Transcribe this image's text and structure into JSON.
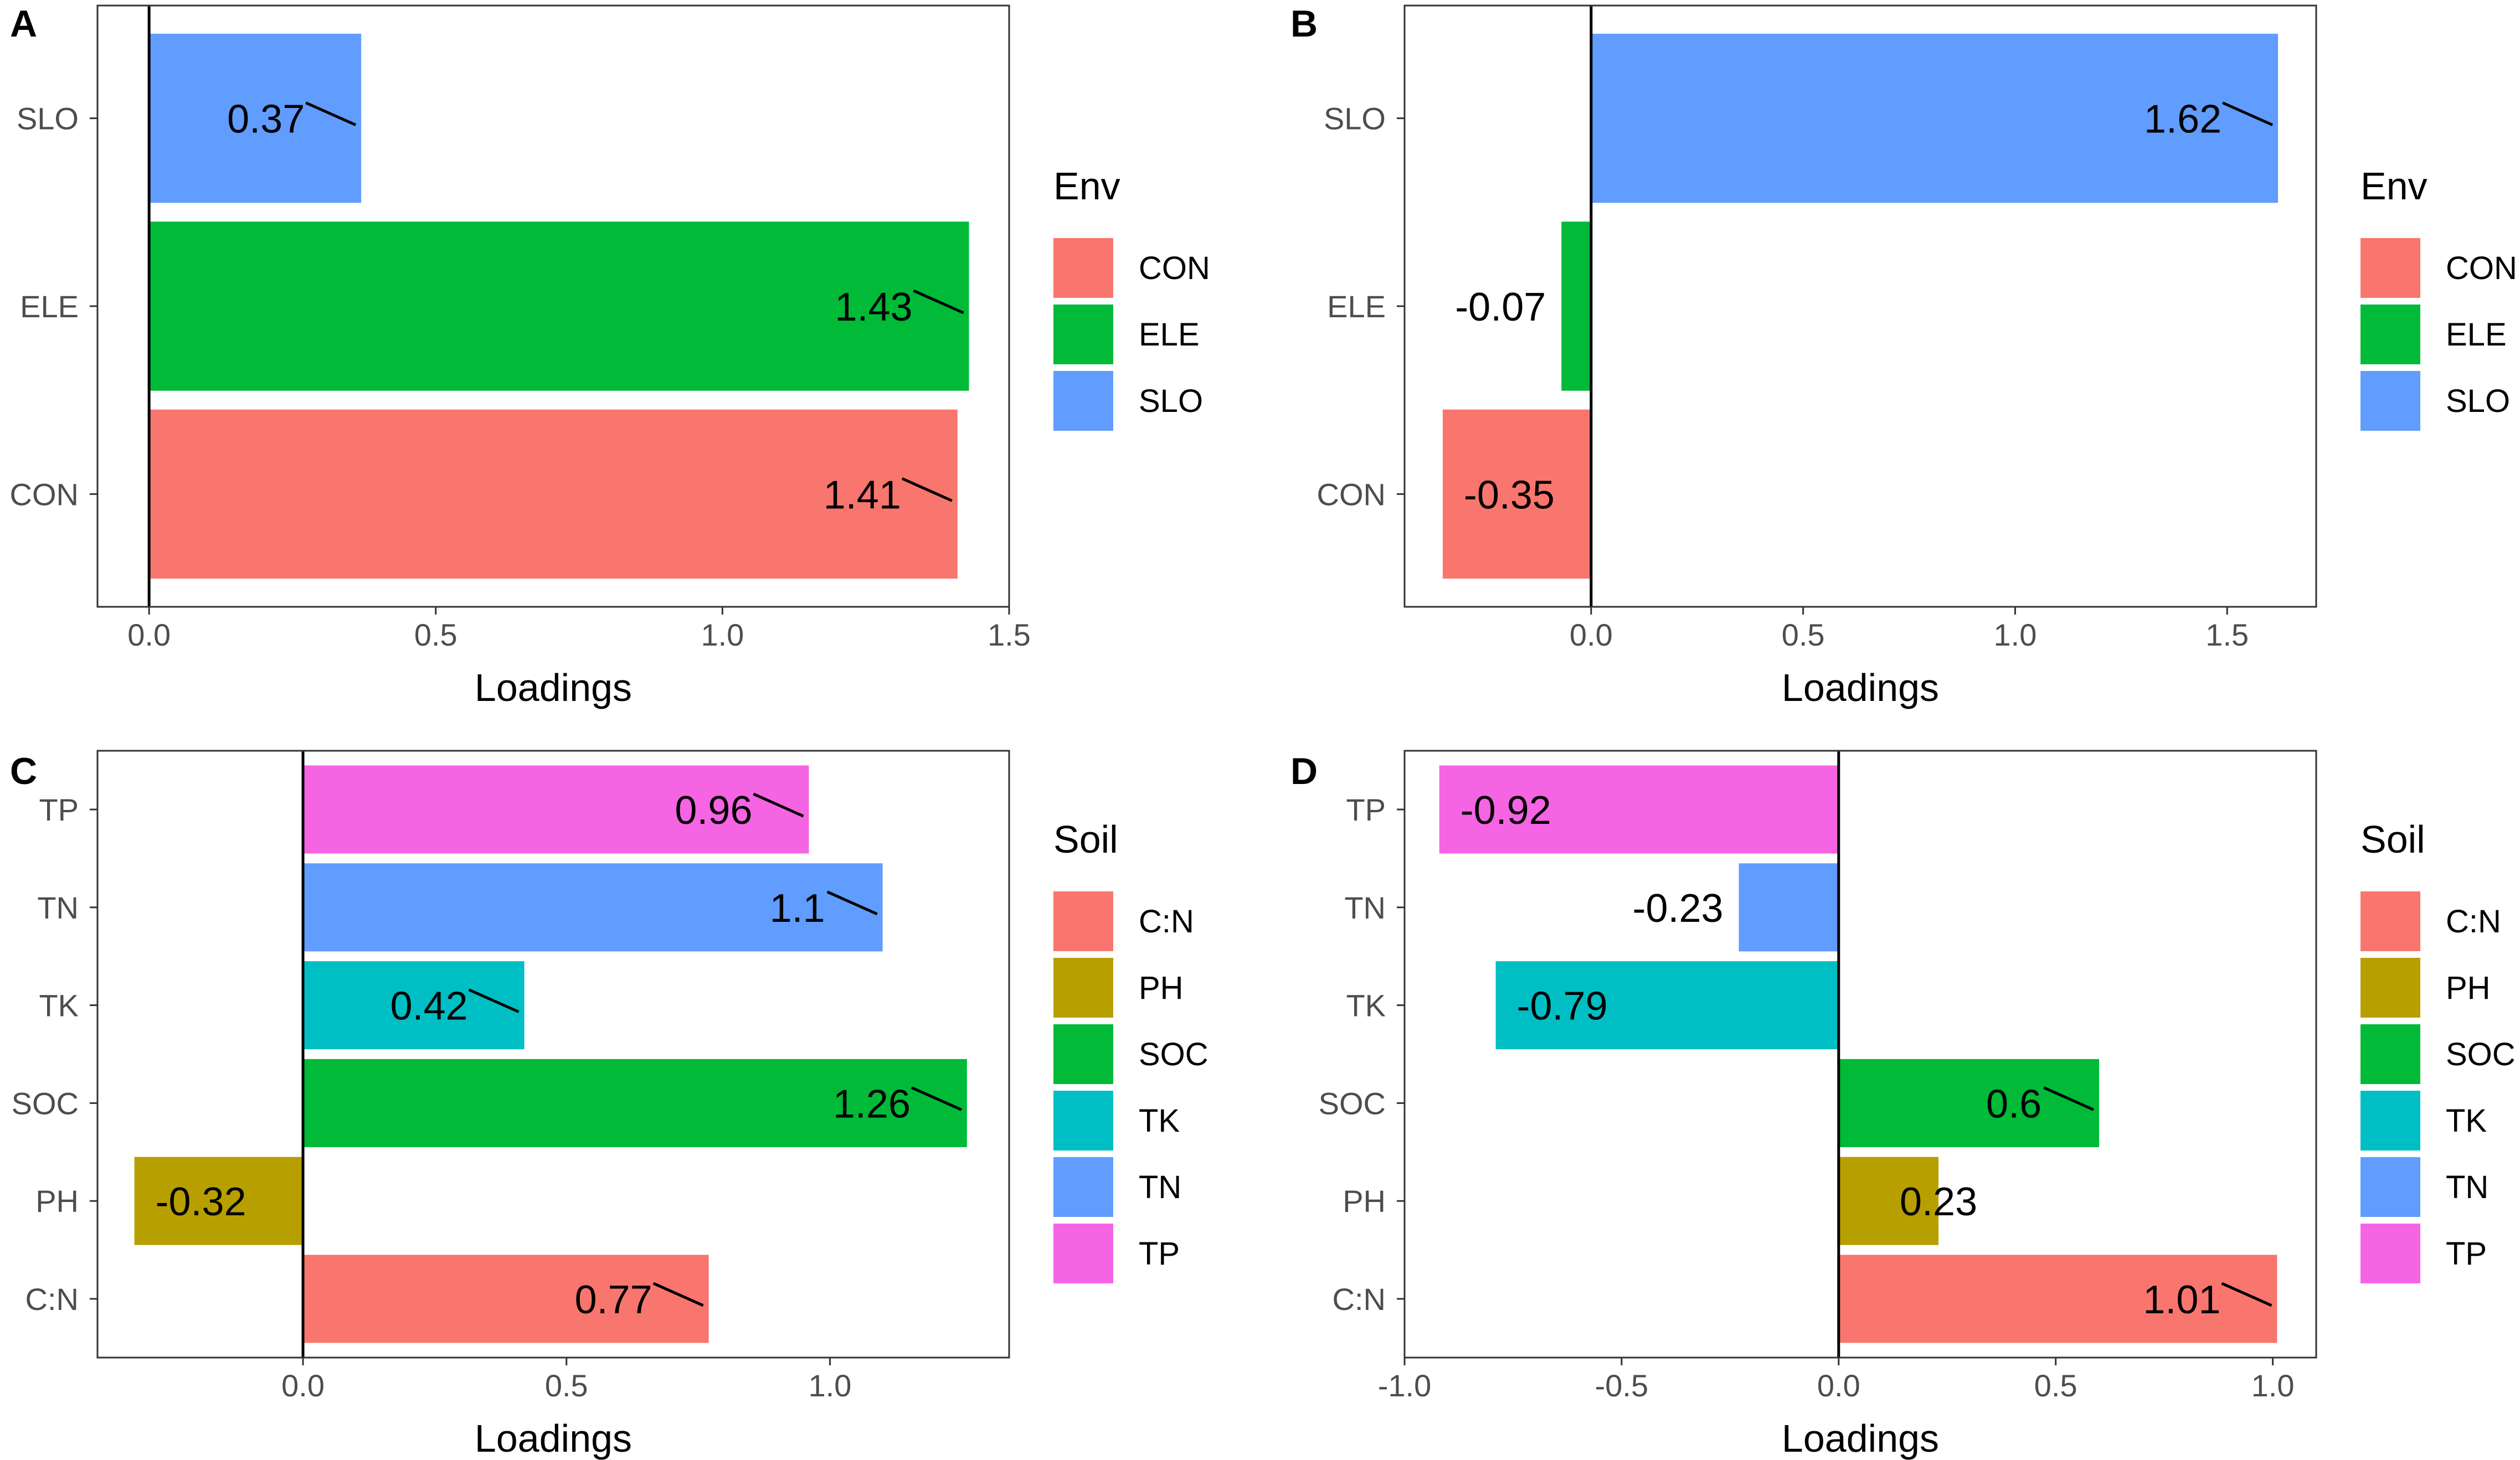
{
  "figure": {
    "x_axis_label": "Loadings"
  },
  "chart_data": [
    {
      "panel": "A",
      "type": "bar",
      "orientation": "horizontal",
      "categories": [
        "CON",
        "ELE",
        "SLO"
      ],
      "values": [
        1.41,
        1.43,
        0.37
      ],
      "labels": [
        "1.41",
        "1.43",
        "0.37"
      ],
      "colors": [
        "#F8766D",
        "#00BA38",
        "#619CFF"
      ],
      "xlabel": "Loadings",
      "xlim": [
        -0.09,
        1.5
      ],
      "xticks": [
        0.0,
        0.5,
        1.0,
        1.5
      ],
      "xtick_labels": [
        "0.0",
        "0.5",
        "1.0",
        "1.5"
      ],
      "legend": {
        "title": "Env",
        "entries": [
          "CON",
          "ELE",
          "SLO"
        ],
        "colors": [
          "#F8766D",
          "#00BA38",
          "#619CFF"
        ],
        "position": "right"
      }
    },
    {
      "panel": "B",
      "type": "bar",
      "orientation": "horizontal",
      "categories": [
        "CON",
        "ELE",
        "SLO"
      ],
      "values": [
        -0.35,
        -0.07,
        1.62
      ],
      "labels": [
        "-0.35",
        "-0.07",
        "1.62"
      ],
      "colors": [
        "#F8766D",
        "#00BA38",
        "#619CFF"
      ],
      "xlabel": "Loadings",
      "xlim": [
        -0.44,
        1.71
      ],
      "xticks": [
        0.0,
        0.5,
        1.0,
        1.5
      ],
      "xtick_labels": [
        "0.0",
        "0.5",
        "1.0",
        "1.5"
      ],
      "legend": {
        "title": "Env",
        "entries": [
          "CON",
          "ELE",
          "SLO"
        ],
        "colors": [
          "#F8766D",
          "#00BA38",
          "#619CFF"
        ],
        "position": "right"
      }
    },
    {
      "panel": "C",
      "type": "bar",
      "orientation": "horizontal",
      "categories": [
        "C:N",
        "PH",
        "SOC",
        "TK",
        "TN",
        "TP"
      ],
      "values": [
        0.77,
        -0.32,
        1.26,
        0.42,
        1.1,
        0.96
      ],
      "labels": [
        "0.77",
        "-0.32",
        "1.26",
        "0.42",
        "1.1",
        "0.96"
      ],
      "colors": [
        "#F8766D",
        "#B79F00",
        "#00BA38",
        "#00BFC4",
        "#619CFF",
        "#F564E3"
      ],
      "xlabel": "Loadings",
      "xlim": [
        -0.39,
        1.34
      ],
      "xticks": [
        0.0,
        0.5,
        1.0
      ],
      "xtick_labels": [
        "0.0",
        "0.5",
        "1.0"
      ],
      "legend": {
        "title": "Soil",
        "entries": [
          "C:N",
          "PH",
          "SOC",
          "TK",
          "TN",
          "TP"
        ],
        "colors": [
          "#F8766D",
          "#B79F00",
          "#00BA38",
          "#00BFC4",
          "#619CFF",
          "#F564E3"
        ],
        "position": "right"
      }
    },
    {
      "panel": "D",
      "type": "bar",
      "orientation": "horizontal",
      "categories": [
        "C:N",
        "PH",
        "SOC",
        "TK",
        "TN",
        "TP"
      ],
      "values": [
        1.01,
        0.23,
        0.6,
        -0.79,
        -0.23,
        -0.92
      ],
      "labels": [
        "1.01",
        "0.23",
        "0.6",
        "-0.79",
        "-0.23",
        "-0.92"
      ],
      "colors": [
        "#F8766D",
        "#B79F00",
        "#00BA38",
        "#00BFC4",
        "#619CFF",
        "#F564E3"
      ],
      "xlabel": "Loadings",
      "xlim": [
        -1.0,
        1.1
      ],
      "xticks": [
        -1.0,
        -0.5,
        0.0,
        0.5,
        1.0
      ],
      "xtick_labels": [
        "-1.0",
        "-0.5",
        "0.0",
        "0.5",
        "1.0"
      ],
      "legend": {
        "title": "Soil",
        "entries": [
          "C:N",
          "PH",
          "SOC",
          "TK",
          "TN",
          "TP"
        ],
        "colors": [
          "#F8766D",
          "#B79F00",
          "#00BA38",
          "#00BFC4",
          "#619CFF",
          "#F564E3"
        ],
        "position": "right"
      }
    }
  ]
}
